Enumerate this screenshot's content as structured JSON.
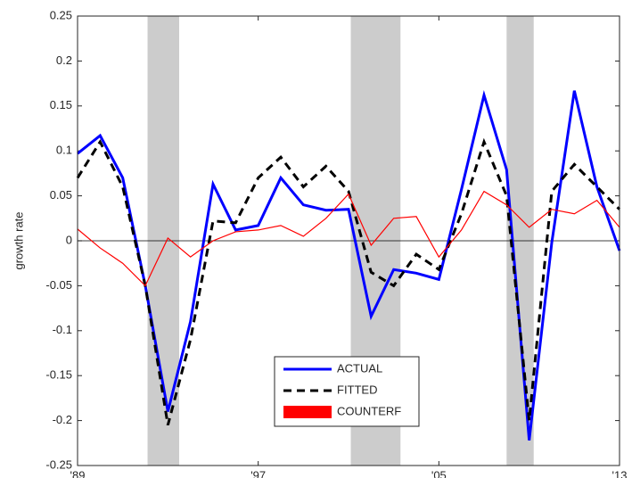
{
  "chart_data": {
    "type": "line",
    "ylabel": "growth rate",
    "x": [
      1989,
      1990,
      1991,
      1992,
      1993,
      1994,
      1995,
      1996,
      1997,
      1998,
      1999,
      2000,
      2001,
      2002,
      2003,
      2004,
      2005,
      2006,
      2007,
      2008,
      2009,
      2010,
      2011,
      2012,
      2013
    ],
    "series": [
      {
        "name": "ACTUAL",
        "color": "#0000ff",
        "style": "solid",
        "values": [
          0.097,
          0.117,
          0.07,
          -0.05,
          -0.19,
          -0.09,
          0.063,
          0.012,
          0.017,
          0.07,
          0.04,
          0.034,
          0.035,
          -0.084,
          -0.032,
          -0.036,
          -0.043,
          0.057,
          0.162,
          0.079,
          -0.222,
          -0.002,
          0.167,
          0.06,
          -0.011
        ]
      },
      {
        "name": "FITTED",
        "color": "#000000",
        "style": "dashed",
        "values": [
          0.07,
          0.11,
          0.06,
          -0.05,
          -0.205,
          -0.11,
          0.022,
          0.02,
          0.07,
          0.093,
          0.06,
          0.083,
          0.055,
          -0.035,
          -0.05,
          -0.015,
          -0.032,
          0.03,
          0.11,
          0.05,
          -0.2,
          0.055,
          0.085,
          0.06,
          0.035
        ]
      },
      {
        "name": "COUNTERF",
        "color": "#ff0000",
        "style": "thin",
        "values": [
          0.013,
          -0.008,
          -0.025,
          -0.05,
          0.003,
          -0.018,
          0.0,
          0.01,
          0.012,
          0.017,
          0.005,
          0.025,
          0.052,
          -0.005,
          0.025,
          0.027,
          -0.018,
          0.012,
          0.055,
          0.04,
          0.015,
          0.035,
          0.03,
          0.045,
          0.015
        ]
      }
    ],
    "shaded_regions": [
      [
        1992.1,
        1993.5
      ],
      [
        2001.1,
        2003.3
      ],
      [
        2008.0,
        2009.2
      ]
    ],
    "shade_color": "#cccccc",
    "xlim": [
      1989,
      2013
    ],
    "xticks": [
      {
        "value": 1989,
        "label": "'89"
      },
      {
        "value": 1997,
        "label": "'97"
      },
      {
        "value": 2005,
        "label": "'05"
      },
      {
        "value": 2013,
        "label": "'13"
      }
    ],
    "ylim": [
      -0.25,
      0.25
    ],
    "yticks": [
      -0.25,
      -0.2,
      -0.15,
      -0.1,
      -0.05,
      0,
      0.05,
      0.1,
      0.15,
      0.2,
      0.25
    ],
    "zero_line": true,
    "legend": "lower center"
  }
}
